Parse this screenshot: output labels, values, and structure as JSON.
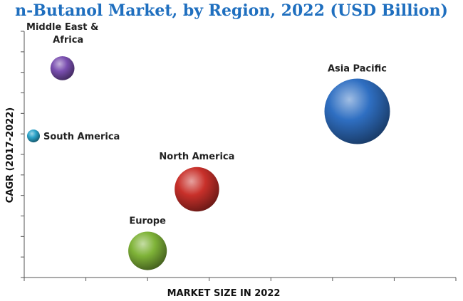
{
  "chart_data": {
    "type": "bubble",
    "title": "n-Butanol Market, by Region, 2022 (USD Billion)",
    "xlabel": "MARKET SIZE IN 2022",
    "ylabel": "CAGR (2017-2022)",
    "grid": false,
    "legend": "none",
    "series": [
      {
        "name": "Middle East & Africa",
        "label_lines": [
          "Middle East &",
          "Africa"
        ],
        "x": 0.62,
        "y": 10.2,
        "size": 0.35,
        "color": "#7a4fb0"
      },
      {
        "name": "South America",
        "label_lines": [
          "South America"
        ],
        "x": 0.15,
        "y": 6.9,
        "size": 0.1,
        "color": "#2aa3c9"
      },
      {
        "name": "Asia Pacific",
        "label_lines": [
          "Asia Pacific"
        ],
        "x": 5.4,
        "y": 8.1,
        "size": 2.6,
        "color": "#2f6fc2"
      },
      {
        "name": "North America",
        "label_lines": [
          "North America"
        ],
        "x": 2.8,
        "y": 4.3,
        "size": 1.2,
        "color": "#c8302a"
      },
      {
        "name": "Europe",
        "label_lines": [
          "Europe"
        ],
        "x": 2.0,
        "y": 1.3,
        "size": 0.9,
        "color": "#7fb338"
      }
    ],
    "xlim": [
      0,
      7
    ],
    "ylim": [
      0,
      12
    ]
  }
}
